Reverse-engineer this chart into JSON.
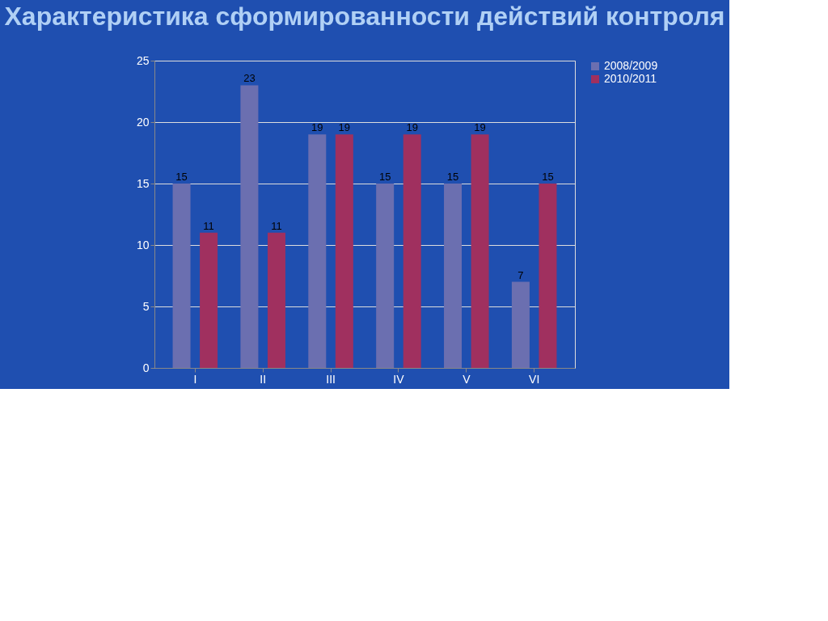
{
  "chart_data": {
    "type": "bar",
    "title": "Характеристика сформированности действий контроля",
    "categories": [
      "I",
      "II",
      "III",
      "IV",
      "V",
      "VI"
    ],
    "series": [
      {
        "name": "2008/2009",
        "color": "#6b6fb0",
        "values": [
          15,
          23,
          19,
          15,
          15,
          7
        ]
      },
      {
        "name": "2010/2011",
        "color": "#a0305f",
        "values": [
          11,
          11,
          19,
          19,
          19,
          15
        ]
      }
    ],
    "ylim": [
      0,
      25
    ],
    "yticks": [
      0,
      5,
      10,
      15,
      20,
      25
    ],
    "grid": "y",
    "legend": "right",
    "data_labels": true
  }
}
